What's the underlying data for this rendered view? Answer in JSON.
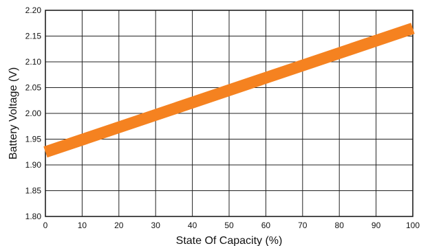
{
  "chart_data": {
    "type": "line",
    "title": "",
    "xlabel": "State Of Capacity (%)",
    "ylabel": "Battery Voltage (V)",
    "xlim": [
      0,
      100
    ],
    "ylim": [
      1.8,
      2.2
    ],
    "x_ticks": [
      "0",
      "10",
      "20",
      "30",
      "40",
      "50",
      "60",
      "70",
      "80",
      "90",
      "100"
    ],
    "y_ticks": [
      "2.20",
      "2.15",
      "2.10",
      "2.05",
      "2.00",
      "1.95",
      "1.90",
      "1.85",
      "1.80"
    ],
    "grid": true,
    "series": [
      {
        "x": [
          0,
          100
        ],
        "y": [
          1.925,
          2.165
        ],
        "color": "#f58220"
      }
    ]
  }
}
